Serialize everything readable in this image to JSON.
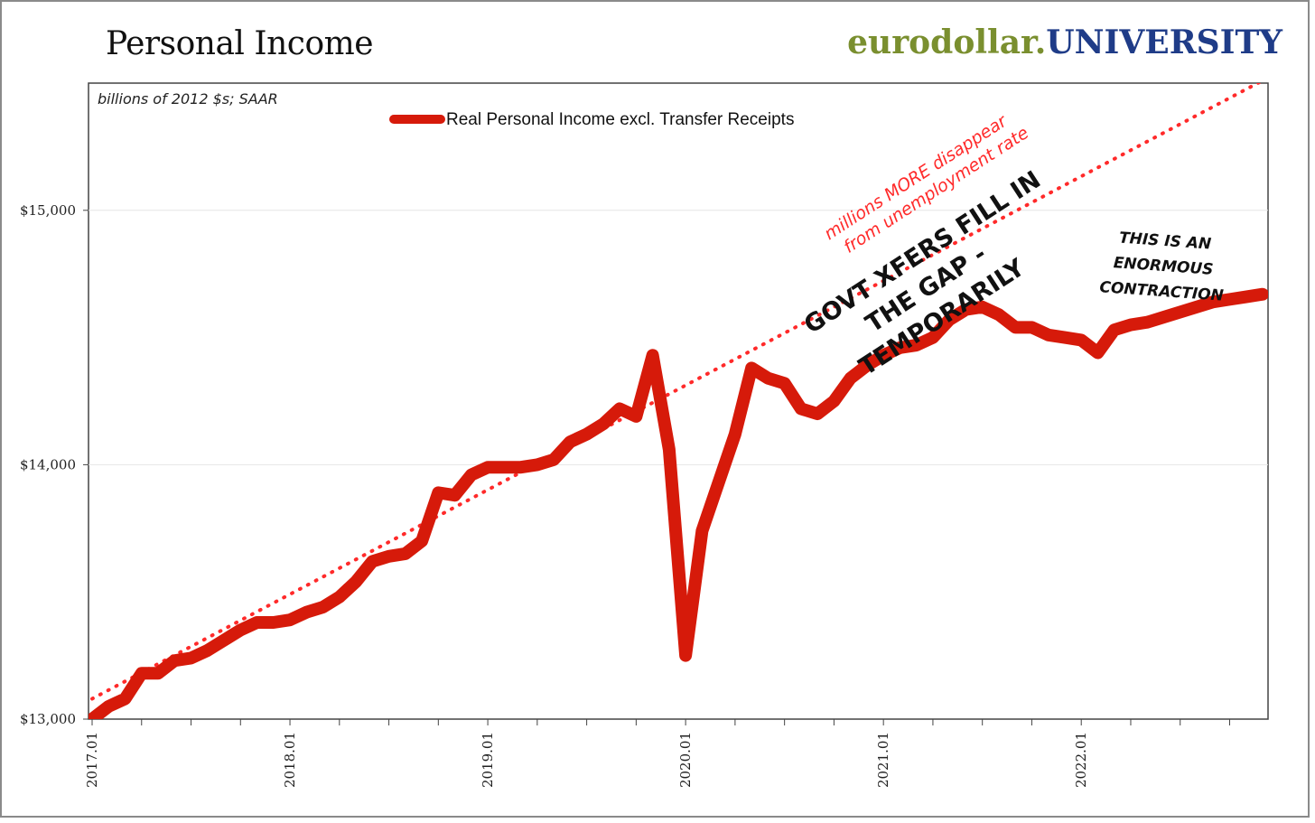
{
  "header": {
    "title": "Personal Income",
    "logo_part1": "eurodollar.",
    "logo_part2": "UNIVERSITY"
  },
  "colors": {
    "series": "#d61a0a",
    "trend": "#ff2a2a",
    "logo_green": "#7a8f2f",
    "logo_blue": "#1f3c88"
  },
  "chart_data": {
    "type": "line",
    "units_note": "billions of 2012 $s; SAAR",
    "ylim": [
      13000,
      15500
    ],
    "yticks": [
      13000,
      14000,
      15000
    ],
    "ytick_labels": [
      "$13,000",
      "$14,000",
      "$15,000"
    ],
    "xlim": [
      "2017.01",
      "2022.12"
    ],
    "xtick_labels": [
      "2017.01",
      "2018.01",
      "2019.01",
      "2020.01",
      "2021.01",
      "2022.01"
    ],
    "grid": true,
    "legend_position": "top",
    "series": [
      {
        "name": "Real Personal Income excl. Transfer Receipts",
        "x": [
          "2017.01",
          "2017.02",
          "2017.03",
          "2017.04",
          "2017.05",
          "2017.06",
          "2017.07",
          "2017.08",
          "2017.09",
          "2017.10",
          "2017.11",
          "2017.12",
          "2018.01",
          "2018.02",
          "2018.03",
          "2018.04",
          "2018.05",
          "2018.06",
          "2018.07",
          "2018.08",
          "2018.09",
          "2018.10",
          "2018.11",
          "2018.12",
          "2019.01",
          "2019.02",
          "2019.03",
          "2019.04",
          "2019.05",
          "2019.06",
          "2019.07",
          "2019.08",
          "2019.09",
          "2019.10",
          "2019.11",
          "2019.12",
          "2020.01",
          "2020.02",
          "2020.03",
          "2020.04",
          "2020.05",
          "2020.06",
          "2020.07",
          "2020.08",
          "2020.09",
          "2020.10",
          "2020.11",
          "2020.12",
          "2021.01",
          "2021.02",
          "2021.03",
          "2021.04",
          "2021.05",
          "2021.06",
          "2021.07",
          "2021.08",
          "2021.09",
          "2021.10",
          "2021.11",
          "2021.12",
          "2022.01",
          "2022.02",
          "2022.03",
          "2022.04",
          "2022.05",
          "2022.06",
          "2022.07",
          "2022.08",
          "2022.09",
          "2022.10",
          "2022.11",
          "2022.12"
        ],
        "values": [
          13000,
          13050,
          13080,
          13180,
          13180,
          13230,
          13240,
          13270,
          13310,
          13350,
          13380,
          13380,
          13390,
          13420,
          13440,
          13480,
          13540,
          13620,
          13640,
          13650,
          13700,
          13890,
          13880,
          13960,
          13990,
          13990,
          13990,
          14000,
          14020,
          14090,
          14120,
          14160,
          14220,
          14190,
          14430,
          14060,
          13250,
          13740,
          13930,
          14120,
          14380,
          14340,
          14320,
          14220,
          14200,
          14250,
          14340,
          14390,
          14430,
          14460,
          14470,
          14500,
          14570,
          14610,
          14620,
          14590,
          14540,
          14540,
          14510,
          14500,
          14490,
          14440,
          14530,
          14550,
          14560,
          14580,
          14600,
          14620,
          14640,
          14650,
          14660,
          14670
        ]
      },
      {
        "name": "",
        "style": "dotted",
        "x": [
          "2017.01",
          "2022.12"
        ],
        "values": [
          13080,
          15510
        ]
      }
    ],
    "annotations": [
      "millions MORE disappear",
      "from unemployment rate",
      "GOVT XFERS FILL IN",
      "THE GAP -",
      "TEMPORARILY",
      "THIS IS AN",
      "ENORMOUS",
      "CONTRACTION"
    ]
  }
}
